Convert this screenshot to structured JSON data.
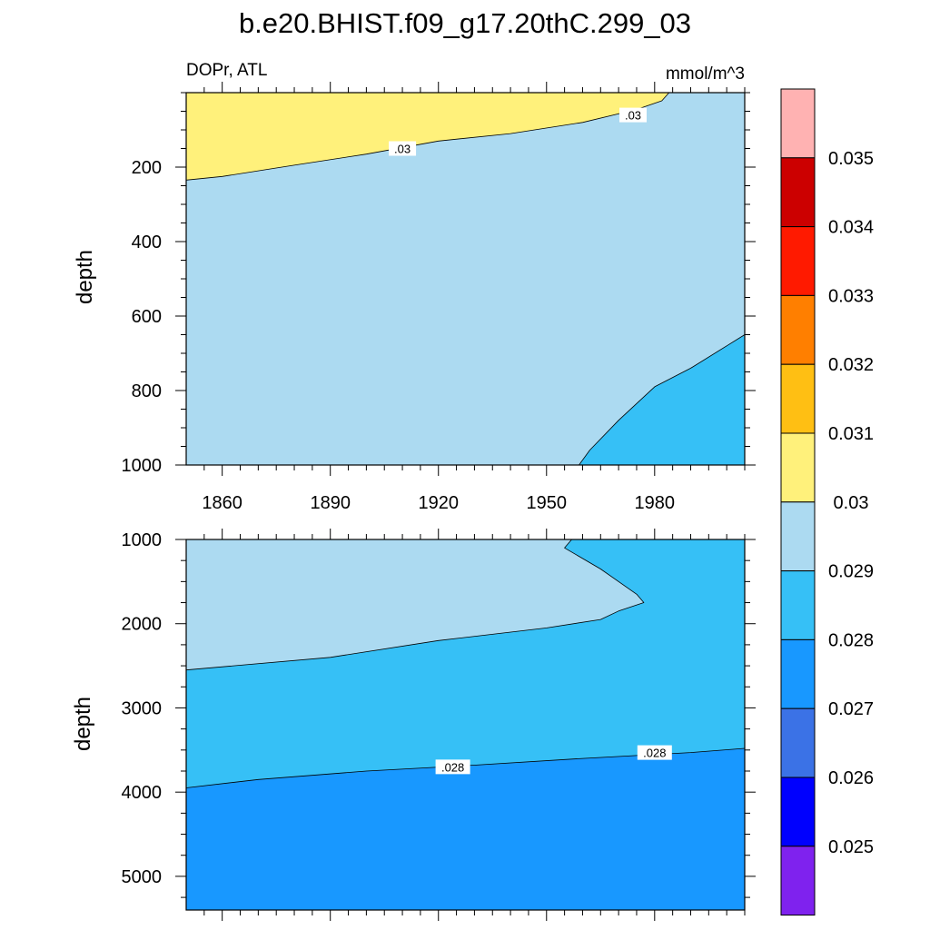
{
  "chart_data": {
    "type": "heatmap",
    "title": "b.e20.BHIST.f09_g17.20thC.299_03",
    "left_string": "DOPr, ATL",
    "units": "mmol/m^3",
    "colorbar": {
      "levels": [
        0.025,
        0.026,
        0.027,
        0.028,
        0.029,
        0.03,
        0.031,
        0.032,
        0.033,
        0.034,
        0.035
      ],
      "labels": [
        "0.025",
        "0.026",
        "0.027",
        "0.028",
        "0.029",
        "0.03",
        "0.031",
        "0.032",
        "0.033",
        "0.034",
        "0.035"
      ],
      "colors": [
        "#7f22ee",
        "#0000fe",
        "#3b72e6",
        "#1898ff",
        "#36c0f6",
        "#acdaf1",
        "#fff17b",
        "#ffbf13",
        "#ff7f00",
        "#ff1a00",
        "#cc0000",
        "#ffb2b2"
      ]
    },
    "x_ticks": [
      1860,
      1890,
      1920,
      1950,
      1980
    ],
    "x_tick_labels": [
      "1860",
      "1890",
      "1920",
      "1950",
      "1980"
    ],
    "xlim": [
      1850,
      2005
    ],
    "panels": [
      {
        "ylabel": "depth",
        "ylim": [
          0,
          1000
        ],
        "y_ticks": [
          200,
          400,
          600,
          800,
          1000
        ],
        "y_tick_labels": [
          "200",
          "400",
          "600",
          "800",
          "1000"
        ],
        "background_range": "0.029–0.03",
        "regions": [
          {
            "range": "0.03–0.031",
            "boundary": [
              [
                1850,
                0
              ],
              [
                1984,
                0
              ],
              [
                1982,
                22
              ],
              [
                1975,
                45
              ],
              [
                1960,
                80
              ],
              [
                1940,
                110
              ],
              [
                1920,
                130
              ],
              [
                1900,
                165
              ],
              [
                1880,
                195
              ],
              [
                1860,
                225
              ],
              [
                1850,
                235
              ]
            ]
          },
          {
            "range": "0.028–0.029",
            "boundary": [
              [
                1959,
                1000
              ],
              [
                1962,
                960
              ],
              [
                1970,
                880
              ],
              [
                1980,
                790
              ],
              [
                1990,
                740
              ],
              [
                2000,
                680
              ],
              [
                2005,
                650
              ],
              [
                2005,
                1000
              ]
            ]
          }
        ],
        "contour_labels": [
          {
            "text": ".03",
            "x": 1910,
            "y": 150
          },
          {
            "text": ".03",
            "x": 1974,
            "y": 60
          }
        ]
      },
      {
        "ylabel": "depth",
        "ylim": [
          1000,
          5400
        ],
        "y_ticks": [
          1000,
          2000,
          3000,
          4000,
          5000
        ],
        "y_tick_labels": [
          "1000",
          "2000",
          "3000",
          "4000",
          "5000"
        ],
        "background_range": "0.028–0.029",
        "regions": [
          {
            "range": "0.029–0.03",
            "boundary": [
              [
                1850,
                1000
              ],
              [
                1957,
                1000
              ],
              [
                1955,
                1100
              ],
              [
                1965,
                1350
              ],
              [
                1975,
                1650
              ],
              [
                1977,
                1750
              ],
              [
                1970,
                1850
              ],
              [
                1965,
                1950
              ],
              [
                1950,
                2050
              ],
              [
                1920,
                2200
              ],
              [
                1890,
                2400
              ],
              [
                1850,
                2550
              ]
            ]
          },
          {
            "range": "0.027–0.028",
            "boundary": [
              [
                1850,
                3950
              ],
              [
                1870,
                3850
              ],
              [
                1900,
                3750
              ],
              [
                1930,
                3680
              ],
              [
                1960,
                3600
              ],
              [
                1990,
                3530
              ],
              [
                2005,
                3480
              ],
              [
                2005,
                5400
              ],
              [
                1850,
                5400
              ]
            ]
          }
        ],
        "contour_labels": [
          {
            "text": ".028",
            "x": 1924,
            "y": 3700
          },
          {
            "text": ".028",
            "x": 1980,
            "y": 3530
          }
        ]
      }
    ]
  }
}
